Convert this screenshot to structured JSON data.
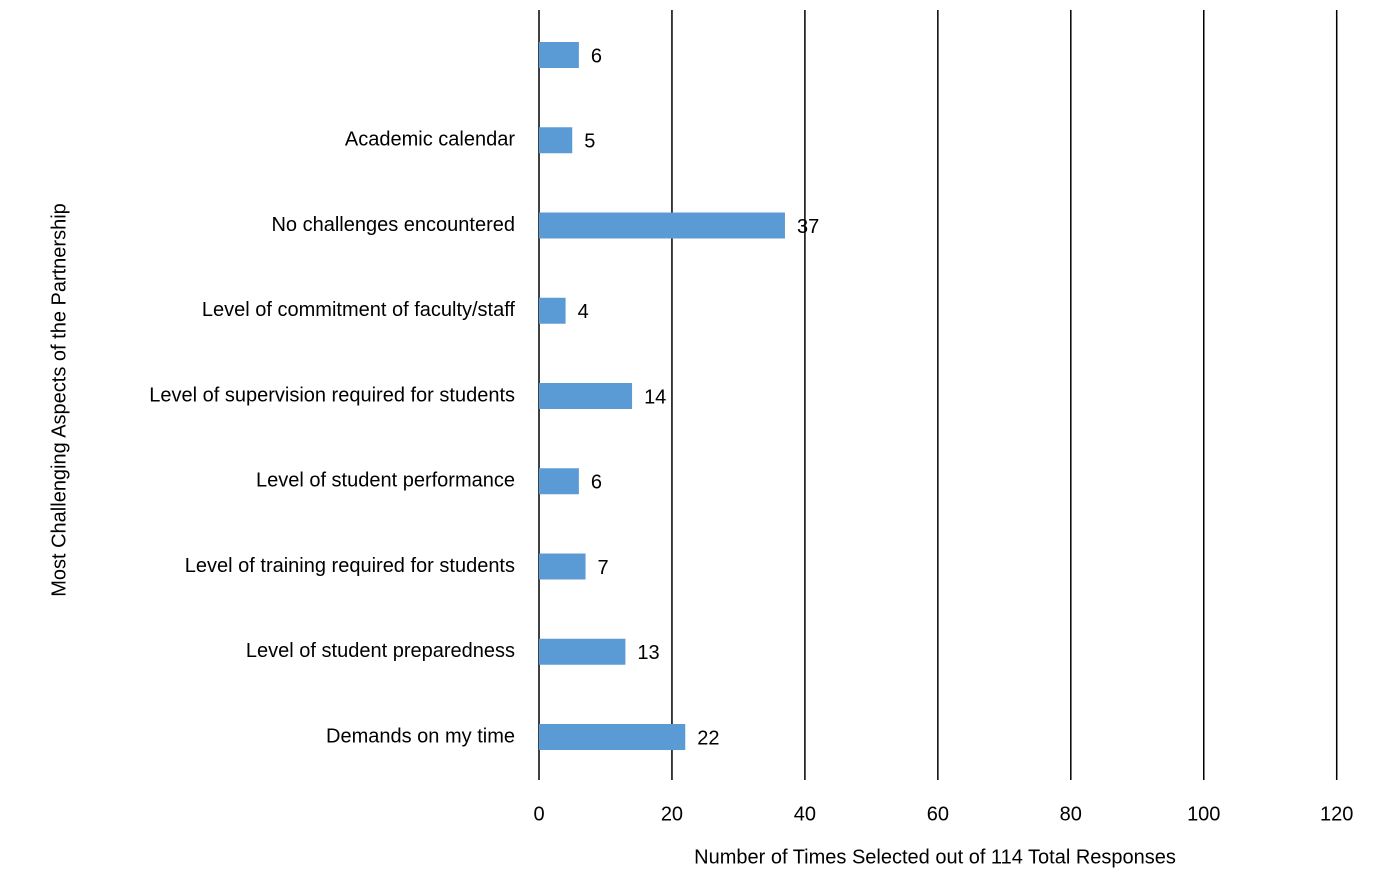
{
  "chart_data": {
    "type": "barh",
    "xlabel": "Number of Times Selected out of 114 Total Responses",
    "ylabel": "Most Challenging Aspects of the Partnership",
    "categories": [
      null,
      "Academic calendar",
      "No challenges encountered",
      "Level of commitment of faculty/staff",
      "Level of supervision required for students",
      "Level of student performance",
      "Level of training required for students",
      "Level of student preparedness",
      "Demands on my time"
    ],
    "values": [
      6,
      5,
      37,
      4,
      14,
      6,
      7,
      13,
      22
    ],
    "color": "#5b9bd5",
    "xlim": [
      0,
      122
    ],
    "xticks": [
      0,
      20,
      40,
      60,
      80,
      100,
      120
    ],
    "grid": true
  }
}
